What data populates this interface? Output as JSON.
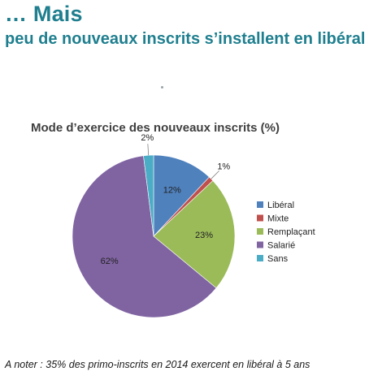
{
  "header": {
    "title": "… Mais",
    "subtitle": "peu de nouveaux inscrits s’installent en libéral"
  },
  "chart_data": {
    "type": "pie",
    "title": "Mode d’exercice des nouveaux inscrits (%)",
    "categories": [
      "Libéral",
      "Mixte",
      "Remplaçant",
      "Salarié",
      "Sans"
    ],
    "values": [
      12,
      1,
      23,
      62,
      2
    ],
    "labels": [
      "12%",
      "1%",
      "23%",
      "62%",
      "2%"
    ],
    "colors": [
      "#4f81bd",
      "#c0504d",
      "#9bbb59",
      "#8064a2",
      "#4bacc6"
    ],
    "legend_position": "right"
  },
  "footer": {
    "note": "A noter : 35% des primo-inscrits en 2014 exercent en libéral à 5 ans"
  }
}
